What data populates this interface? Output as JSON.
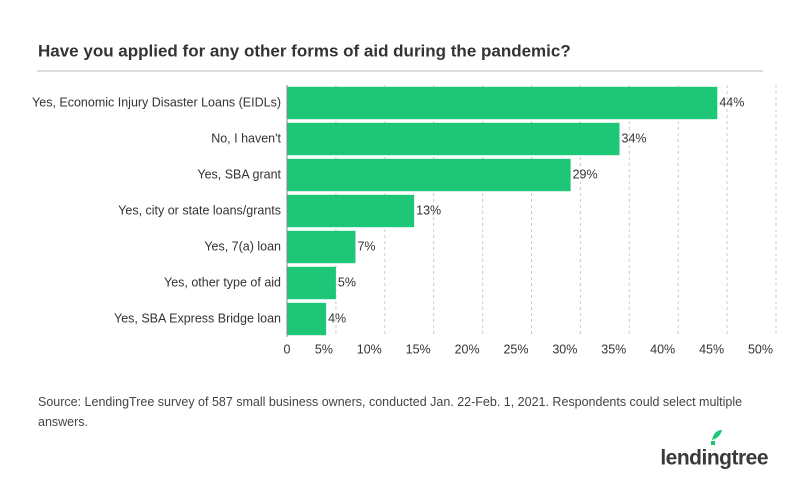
{
  "chart_data": {
    "type": "bar",
    "orientation": "horizontal",
    "title": "Have you applied for any other forms of aid during the pandemic?",
    "categories": [
      "Yes, Economic Injury Disaster Loans (EIDLs)",
      "No, I haven't",
      "Yes, SBA grant",
      "Yes, city or state loans/grants",
      "Yes, 7(a) loan",
      "Yes, other type of aid",
      "Yes, SBA Express Bridge loan"
    ],
    "values": [
      44,
      34,
      29,
      13,
      7,
      5,
      4
    ],
    "value_labels": [
      "44%",
      "34%",
      "29%",
      "13%",
      "7%",
      "5%",
      "4%"
    ],
    "color": "#1dc777",
    "xlim": [
      0,
      50
    ],
    "xticks": [
      0,
      {
        "value": 5,
        "label": "5%"
      },
      {
        "value": 10,
        "label": "10%"
      },
      {
        "value": 15,
        "label": "15%"
      },
      {
        "value": 20,
        "label": "20%"
      },
      {
        "value": 25,
        "label": "25%"
      },
      {
        "value": 30,
        "label": "30%"
      },
      {
        "value": 35,
        "label": "35%"
      },
      {
        "value": 40,
        "label": "40%"
      },
      {
        "value": 45,
        "label": "45%"
      },
      {
        "value": 50,
        "label": "50%"
      }
    ],
    "grid": true,
    "source": "Source: LendingTree survey of 587 small business owners, conducted Jan. 22-Feb. 1, 2021. Respondents could select multiple answers.",
    "brand": "lendingtree"
  }
}
